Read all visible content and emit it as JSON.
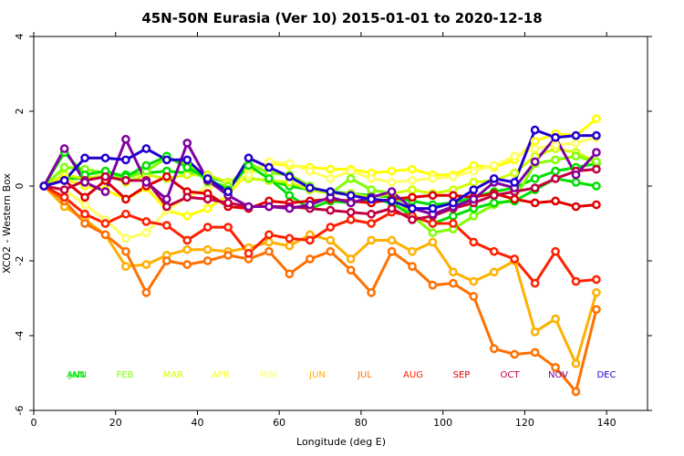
{
  "chart_data": {
    "type": "line",
    "title": "45N-50N Eurasia (Ver 10)   2015-01-01 to 2020-12-18",
    "xlabel": "Longitude (deg E)",
    "ylabel": "XCO2 - Western Box",
    "xlim": [
      0,
      150
    ],
    "ylim": [
      -6,
      4
    ],
    "xticks": [
      0,
      20,
      40,
      60,
      80,
      100,
      120,
      140
    ],
    "yticks": [
      -6,
      -4,
      -2,
      0,
      2,
      4
    ],
    "x": [
      2.5,
      7.5,
      12.5,
      17.5,
      22.5,
      27.5,
      32.5,
      37.5,
      42.5,
      47.5,
      52.5,
      57.5,
      62.5,
      67.5,
      72.5,
      77.5,
      82.5,
      87.5,
      92.5,
      97.5,
      102.5,
      107.5,
      112.5,
      117.5,
      122.5,
      127.5,
      132.5,
      137.5
    ],
    "series": [
      {
        "name": "JAN",
        "color": "#00e000",
        "values": [
          0,
          0.9,
          0.3,
          0.4,
          0.25,
          0.55,
          0.8,
          0.5,
          0.2,
          -0.1,
          0.55,
          0.2,
          -0.25,
          -0.6,
          -0.4,
          -0.45,
          -0.35,
          -0.45,
          -0.8,
          -1.0,
          -0.8,
          -0.6,
          -0.45,
          -0.4,
          -0.1,
          0.2,
          0.1,
          0.0
        ]
      },
      {
        "name": "ANN",
        "color": "#00e000",
        "values": [
          0,
          0.2,
          0.2,
          0.25,
          0.3,
          0.35,
          0.4,
          0.35,
          0.25,
          0.1,
          0.2,
          0.15,
          0.0,
          -0.1,
          -0.15,
          -0.2,
          -0.25,
          -0.3,
          -0.4,
          -0.5,
          -0.45,
          -0.3,
          -0.15,
          -0.05,
          0.2,
          0.4,
          0.5,
          0.6
        ]
      },
      {
        "name": "FEB",
        "color": "#80ff00",
        "values": [
          0,
          0.5,
          0.45,
          0.35,
          0.2,
          0.4,
          0.75,
          0.6,
          0.1,
          0.0,
          0.6,
          0.35,
          0.3,
          0.0,
          -0.2,
          0.2,
          -0.1,
          -0.2,
          -0.8,
          -1.25,
          -1.15,
          -0.8,
          -0.5,
          -0.35,
          0.6,
          0.7,
          0.8,
          0.65
        ]
      },
      {
        "name": "MAR",
        "color": "#d0ff00",
        "values": [
          0,
          0.3,
          0.2,
          0.3,
          0.1,
          0.3,
          0.2,
          0.3,
          0.3,
          0.1,
          0.2,
          0.15,
          0.1,
          -0.1,
          -0.2,
          -0.2,
          -0.3,
          -0.2,
          -0.1,
          -0.2,
          -0.1,
          0.1,
          0.15,
          0.35,
          0.8,
          1.0,
          0.9,
          0.65
        ]
      },
      {
        "name": "APR",
        "color": "#ffff00",
        "values": [
          0,
          0.2,
          0.0,
          -0.1,
          -0.35,
          -0.05,
          -0.65,
          -0.8,
          -0.6,
          -0.25,
          0.4,
          0.6,
          0.55,
          0.5,
          0.45,
          0.45,
          0.35,
          0.4,
          0.45,
          0.3,
          0.3,
          0.55,
          0.5,
          0.7,
          1.2,
          1.4,
          1.35,
          1.8
        ]
      },
      {
        "name": "MAY",
        "color": "#ffff60",
        "values": [
          0,
          -0.1,
          -0.5,
          -0.9,
          -1.4,
          -1.25,
          -0.65,
          -0.3,
          -0.05,
          0.05,
          0.3,
          0.65,
          0.6,
          0.4,
          0.2,
          0.4,
          0.2,
          0.1,
          0.15,
          0.2,
          0.25,
          0.4,
          0.55,
          0.8,
          1.0,
          1.1,
          1.15,
          1.3
        ]
      },
      {
        "name": "JUN",
        "color": "#ffb000",
        "values": [
          0,
          -0.55,
          -0.9,
          -1.3,
          -2.15,
          -2.1,
          -1.85,
          -1.7,
          -1.7,
          -1.75,
          -1.65,
          -1.5,
          -1.6,
          -1.3,
          -1.45,
          -1.95,
          -1.45,
          -1.45,
          -1.75,
          -1.5,
          -2.3,
          -2.55,
          -2.3,
          -2.0,
          -3.9,
          -3.55,
          -4.75,
          -2.85
        ]
      },
      {
        "name": "JUL",
        "color": "#ff7000",
        "values": [
          0,
          -0.4,
          -1.0,
          -1.3,
          -1.75,
          -2.85,
          -2.0,
          -2.1,
          -2.0,
          -1.85,
          -1.95,
          -1.75,
          -2.35,
          -1.95,
          -1.75,
          -2.25,
          -2.85,
          -1.75,
          -2.15,
          -2.65,
          -2.6,
          -2.95,
          -4.35,
          -4.5,
          -4.45,
          -4.85,
          -5.5,
          -3.3
        ]
      },
      {
        "name": "AUG",
        "color": "#ff2000",
        "values": [
          0,
          -0.3,
          -0.75,
          -1.0,
          -0.75,
          -0.95,
          -1.05,
          -1.45,
          -1.1,
          -1.1,
          -1.8,
          -1.3,
          -1.4,
          -1.45,
          -1.1,
          -0.9,
          -1.0,
          -0.7,
          -0.8,
          -1.0,
          -1.0,
          -1.5,
          -1.75,
          -1.95,
          -2.6,
          -1.75,
          -2.55,
          -2.5
        ]
      },
      {
        "name": "SEP",
        "color": "#e00000",
        "values": [
          0,
          0.15,
          -0.3,
          0.15,
          -0.35,
          0.0,
          0.25,
          -0.15,
          -0.2,
          -0.55,
          -0.6,
          -0.4,
          -0.45,
          -0.4,
          -0.35,
          -0.4,
          -0.45,
          -0.35,
          -0.3,
          -0.25,
          -0.25,
          -0.3,
          -0.2,
          -0.35,
          -0.45,
          -0.4,
          -0.55,
          -0.5
        ]
      },
      {
        "name": "OCT",
        "color": "#c00040",
        "values": [
          0,
          -0.1,
          0.15,
          0.25,
          0.15,
          0.15,
          -0.55,
          -0.3,
          -0.35,
          -0.45,
          -0.55,
          -0.55,
          -0.55,
          -0.6,
          -0.65,
          -0.7,
          -0.75,
          -0.6,
          -0.9,
          -0.8,
          -0.6,
          -0.45,
          -0.25,
          -0.15,
          -0.05,
          0.2,
          0.4,
          0.45
        ]
      },
      {
        "name": "NOV",
        "color": "#8000a0",
        "values": [
          0,
          1.0,
          0.1,
          -0.15,
          1.25,
          0.1,
          -0.35,
          1.15,
          0.15,
          -0.25,
          -0.55,
          -0.55,
          -0.6,
          -0.5,
          -0.3,
          -0.45,
          -0.3,
          -0.15,
          -0.6,
          -0.75,
          -0.55,
          -0.35,
          0.1,
          -0.05,
          0.65,
          1.3,
          0.3,
          0.9
        ]
      },
      {
        "name": "DEC",
        "color": "#2000d0",
        "values": [
          0,
          0.15,
          0.75,
          0.75,
          0.7,
          1.0,
          0.7,
          0.7,
          0.2,
          -0.15,
          0.75,
          0.5,
          0.25,
          -0.05,
          -0.15,
          -0.25,
          -0.35,
          -0.4,
          -0.6,
          -0.6,
          -0.45,
          -0.1,
          0.2,
          0.1,
          1.5,
          1.3,
          1.35,
          1.35
        ]
      }
    ]
  }
}
